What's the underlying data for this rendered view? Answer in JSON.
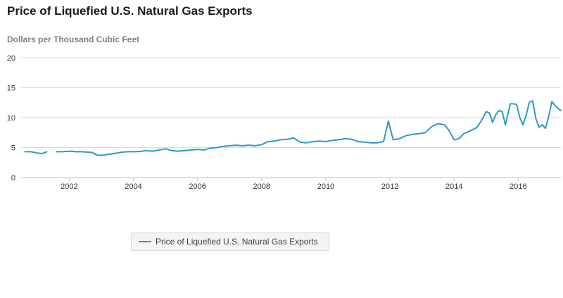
{
  "chart_data": {
    "type": "line",
    "title": "Price of Liquefied U.S. Natural Gas Exports",
    "ylabel": "Dollars per Thousand Cubic Feet",
    "xlabel": "",
    "xlim": [
      2000.5,
      2017.33
    ],
    "ylim": [
      0,
      20
    ],
    "y_ticks": [
      "0",
      "5",
      "10",
      "15",
      "20"
    ],
    "x_ticks": [
      "2002",
      "2004",
      "2006",
      "2008",
      "2010",
      "2012",
      "2014",
      "2016"
    ],
    "grid": true,
    "legend": "bottom-left",
    "series": [
      {
        "name": "Price of Liquefied U.S. Natural Gas Exports",
        "color": "#2b9ac6",
        "segments": [
          [
            [
              2000.62,
              4.3
            ],
            [
              2000.8,
              4.3
            ],
            [
              2001.0,
              4.1
            ],
            [
              2001.15,
              4.0
            ],
            [
              2001.3,
              4.3
            ]
          ],
          [
            [
              2001.6,
              4.3
            ],
            [
              2001.75,
              4.3
            ],
            [
              2001.9,
              4.35
            ],
            [
              2002.05,
              4.4
            ],
            [
              2002.2,
              4.3
            ],
            [
              2002.4,
              4.3
            ],
            [
              2002.55,
              4.25
            ],
            [
              2002.7,
              4.2
            ],
            [
              2002.85,
              3.8
            ],
            [
              2003.0,
              3.7
            ],
            [
              2003.2,
              3.85
            ],
            [
              2003.4,
              4.0
            ],
            [
              2003.6,
              4.2
            ],
            [
              2003.8,
              4.3
            ],
            [
              2004.0,
              4.3
            ],
            [
              2004.2,
              4.35
            ],
            [
              2004.4,
              4.5
            ],
            [
              2004.6,
              4.4
            ],
            [
              2004.8,
              4.6
            ],
            [
              2005.0,
              4.8
            ],
            [
              2005.2,
              4.5
            ],
            [
              2005.4,
              4.4
            ],
            [
              2005.6,
              4.5
            ],
            [
              2005.8,
              4.6
            ],
            [
              2006.0,
              4.7
            ],
            [
              2006.2,
              4.6
            ],
            [
              2006.4,
              4.9
            ],
            [
              2006.6,
              5.0
            ],
            [
              2006.8,
              5.2
            ],
            [
              2007.0,
              5.3
            ],
            [
              2007.2,
              5.4
            ],
            [
              2007.4,
              5.3
            ],
            [
              2007.6,
              5.4
            ],
            [
              2007.8,
              5.3
            ],
            [
              2008.0,
              5.5
            ],
            [
              2008.2,
              6.0
            ],
            [
              2008.4,
              6.1
            ],
            [
              2008.6,
              6.3
            ],
            [
              2008.8,
              6.4
            ],
            [
              2009.0,
              6.6
            ],
            [
              2009.2,
              5.9
            ],
            [
              2009.4,
              5.8
            ],
            [
              2009.6,
              6.0
            ],
            [
              2009.8,
              6.1
            ],
            [
              2010.0,
              6.0
            ],
            [
              2010.2,
              6.2
            ],
            [
              2010.4,
              6.3
            ],
            [
              2010.6,
              6.5
            ],
            [
              2010.8,
              6.4
            ],
            [
              2011.0,
              6.0
            ],
            [
              2011.2,
              5.9
            ],
            [
              2011.4,
              5.8
            ],
            [
              2011.6,
              5.8
            ],
            [
              2011.8,
              6.0
            ],
            [
              2011.95,
              9.4
            ],
            [
              2012.1,
              6.3
            ],
            [
              2012.3,
              6.5
            ],
            [
              2012.5,
              7.0
            ],
            [
              2012.7,
              7.2
            ],
            [
              2012.9,
              7.3
            ],
            [
              2013.1,
              7.5
            ],
            [
              2013.3,
              8.5
            ],
            [
              2013.5,
              9.0
            ],
            [
              2013.7,
              8.8
            ],
            [
              2013.85,
              7.8
            ],
            [
              2014.0,
              6.3
            ],
            [
              2014.15,
              6.5
            ],
            [
              2014.3,
              7.3
            ],
            [
              2014.5,
              7.8
            ],
            [
              2014.7,
              8.3
            ],
            [
              2014.85,
              9.5
            ],
            [
              2015.0,
              11.0
            ],
            [
              2015.1,
              10.8
            ],
            [
              2015.2,
              9.2
            ],
            [
              2015.3,
              10.5
            ],
            [
              2015.4,
              11.2
            ],
            [
              2015.5,
              11.0
            ],
            [
              2015.6,
              8.8
            ],
            [
              2015.75,
              12.3
            ],
            [
              2015.85,
              12.3
            ],
            [
              2015.95,
              12.2
            ],
            [
              2016.05,
              10.0
            ],
            [
              2016.15,
              8.8
            ],
            [
              2016.25,
              10.5
            ],
            [
              2016.35,
              12.6
            ],
            [
              2016.45,
              12.8
            ],
            [
              2016.55,
              9.8
            ],
            [
              2016.65,
              8.4
            ],
            [
              2016.75,
              8.8
            ],
            [
              2016.85,
              8.2
            ],
            [
              2016.95,
              10.2
            ],
            [
              2017.05,
              12.7
            ],
            [
              2017.15,
              12.0
            ],
            [
              2017.25,
              11.5
            ],
            [
              2017.33,
              11.2
            ]
          ]
        ]
      }
    ]
  }
}
